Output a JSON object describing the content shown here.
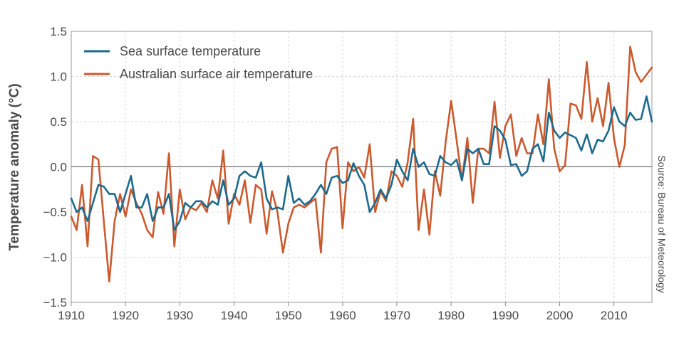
{
  "chart_data": {
    "type": "line",
    "title": "",
    "xlabel": "",
    "ylabel": "Temperature anomaly (°C)",
    "source": "Source: Bureau of Meteorology",
    "xlim": [
      1910,
      2017
    ],
    "ylim": [
      -1.5,
      1.5
    ],
    "x_ticks": [
      "1910",
      "1920",
      "1930",
      "1940",
      "1950",
      "1960",
      "1970",
      "1980",
      "1990",
      "2000",
      "2010"
    ],
    "y_ticks": [
      "1.5",
      "1.0",
      "0.5",
      "0.0",
      "−0.5",
      "−1.0",
      "−1.5"
    ],
    "grid": true,
    "legend_position": "top-left",
    "x": [
      1910,
      1911,
      1912,
      1913,
      1914,
      1915,
      1916,
      1917,
      1918,
      1919,
      1920,
      1921,
      1922,
      1923,
      1924,
      1925,
      1926,
      1927,
      1928,
      1929,
      1930,
      1931,
      1932,
      1933,
      1934,
      1935,
      1936,
      1937,
      1938,
      1939,
      1940,
      1941,
      1942,
      1943,
      1944,
      1945,
      1946,
      1947,
      1948,
      1949,
      1950,
      1951,
      1952,
      1953,
      1954,
      1955,
      1956,
      1957,
      1958,
      1959,
      1960,
      1961,
      1962,
      1963,
      1964,
      1965,
      1966,
      1967,
      1968,
      1969,
      1970,
      1971,
      1972,
      1973,
      1974,
      1975,
      1976,
      1977,
      1978,
      1979,
      1980,
      1981,
      1982,
      1983,
      1984,
      1985,
      1986,
      1987,
      1988,
      1989,
      1990,
      1991,
      1992,
      1993,
      1994,
      1995,
      1996,
      1997,
      1998,
      1999,
      2000,
      2001,
      2002,
      2003,
      2004,
      2005,
      2006,
      2007,
      2008,
      2009,
      2010,
      2011,
      2012,
      2013,
      2014,
      2015,
      2016,
      2017
    ],
    "series": [
      {
        "name": "Sea surface temperature",
        "color": "#1c6a8e",
        "values": [
          -0.35,
          -0.5,
          -0.45,
          -0.6,
          -0.4,
          -0.2,
          -0.22,
          -0.3,
          -0.3,
          -0.5,
          -0.3,
          -0.1,
          -0.45,
          -0.45,
          -0.3,
          -0.6,
          -0.45,
          -0.45,
          -0.3,
          -0.7,
          -0.6,
          -0.4,
          -0.45,
          -0.38,
          -0.38,
          -0.45,
          -0.38,
          -0.42,
          -0.15,
          -0.42,
          -0.35,
          -0.1,
          -0.05,
          -0.1,
          -0.12,
          0.05,
          -0.35,
          -0.47,
          -0.45,
          -0.47,
          -0.1,
          -0.4,
          -0.35,
          -0.42,
          -0.38,
          -0.3,
          -0.2,
          -0.3,
          -0.12,
          -0.1,
          -0.18,
          -0.15,
          0.04,
          -0.1,
          -0.2,
          -0.5,
          -0.4,
          -0.25,
          -0.35,
          -0.2,
          0.08,
          -0.05,
          -0.15,
          0.2,
          0.0,
          0.05,
          -0.08,
          -0.1,
          0.12,
          0.05,
          0.02,
          0.08,
          -0.15,
          0.2,
          0.15,
          0.2,
          0.03,
          0.03,
          0.45,
          0.4,
          0.3,
          0.02,
          0.03,
          -0.1,
          -0.05,
          0.2,
          0.25,
          0.06,
          0.6,
          0.4,
          0.32,
          0.38,
          0.35,
          0.32,
          0.18,
          0.36,
          0.15,
          0.3,
          0.28,
          0.4,
          0.66,
          0.5,
          0.45,
          0.6,
          0.52,
          0.53,
          0.78,
          0.5
        ]
      },
      {
        "name": "Australian surface air temperature",
        "color": "#cb5a2e",
        "values": [
          -0.55,
          -0.7,
          -0.2,
          -0.88,
          0.12,
          0.08,
          -0.6,
          -1.27,
          -0.6,
          -0.3,
          -0.55,
          -0.25,
          -0.4,
          -0.52,
          -0.7,
          -0.78,
          -0.28,
          -0.52,
          0.15,
          -0.88,
          -0.25,
          -0.58,
          -0.45,
          -0.48,
          -0.4,
          -0.5,
          -0.15,
          -0.35,
          0.18,
          -0.63,
          -0.3,
          -0.42,
          -0.15,
          -0.62,
          -0.2,
          -0.25,
          -0.74,
          -0.27,
          -0.5,
          -0.95,
          -0.63,
          -0.45,
          -0.42,
          -0.45,
          -0.4,
          -0.35,
          -0.95,
          0.05,
          0.2,
          0.22,
          -0.68,
          0.05,
          -0.05,
          0.0,
          -0.12,
          0.25,
          -0.5,
          -0.27,
          -0.38,
          -0.05,
          -0.1,
          -0.22,
          0.05,
          0.53,
          -0.7,
          -0.25,
          -0.75,
          -0.05,
          -0.32,
          0.28,
          0.73,
          0.3,
          -0.15,
          0.32,
          -0.4,
          0.2,
          0.2,
          0.15,
          0.72,
          0.1,
          0.45,
          0.58,
          0.12,
          0.32,
          0.15,
          0.15,
          0.58,
          0.25,
          0.97,
          0.2,
          -0.05,
          0.02,
          0.7,
          0.68,
          0.53,
          1.16,
          0.5,
          0.76,
          0.45,
          0.93,
          0.32,
          0.0,
          0.24,
          1.33,
          1.05,
          0.94,
          1.02,
          1.1
        ]
      }
    ]
  }
}
